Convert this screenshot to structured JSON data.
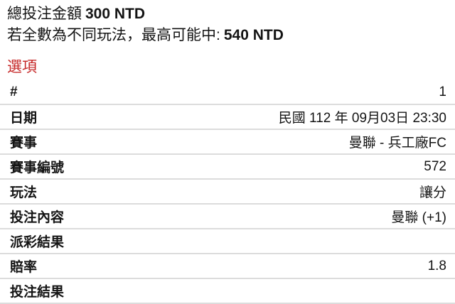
{
  "summary": {
    "total_label": "總投注金額",
    "total_value": "300 NTD",
    "potential_prefix": "若全數為不同玩法，最高可能中:",
    "potential_value": "540 NTD"
  },
  "section_title": "選項",
  "colors": {
    "accent_red": "#c62828",
    "divider": "#dcdcdc",
    "text": "#141414"
  },
  "table": {
    "rows": [
      {
        "label": "#",
        "value": "1"
      },
      {
        "label": "日期",
        "value": "民國 112 年 09月03日 23:30"
      },
      {
        "label": "賽事",
        "value": "曼聯 - 兵工廠FC"
      },
      {
        "label": "賽事編號",
        "value": "572"
      },
      {
        "label": "玩法",
        "value": "讓分"
      },
      {
        "label": "投注內容",
        "value": "曼聯 (+1)"
      },
      {
        "label": "派彩結果",
        "value": ""
      },
      {
        "label": "賠率",
        "value": "1.8"
      },
      {
        "label": "投注結果",
        "value": ""
      }
    ]
  }
}
